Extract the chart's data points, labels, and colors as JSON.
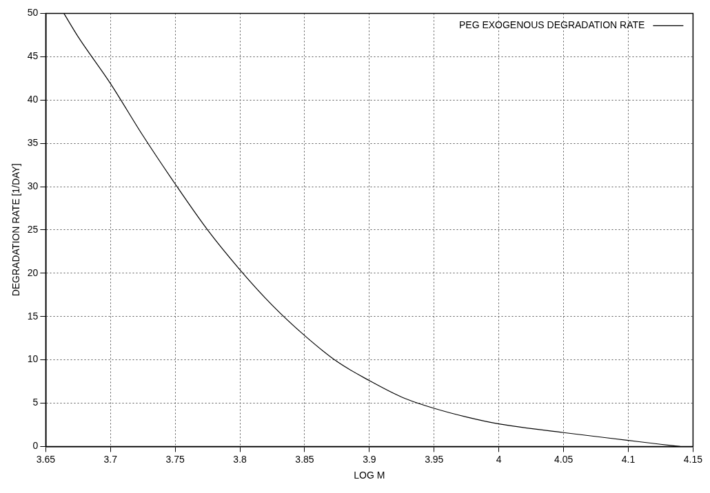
{
  "chart_data": {
    "type": "line",
    "xlabel": "LOG M",
    "ylabel": "DEGRADATION RATE [1/DAY]",
    "xlim": [
      3.65,
      4.15
    ],
    "xticks": [
      3.65,
      3.7,
      3.75,
      3.8,
      3.85,
      3.9,
      3.95,
      4,
      4.05,
      4.1,
      4.15
    ],
    "ylim": [
      0,
      50
    ],
    "yticks": [
      0,
      5,
      10,
      15,
      20,
      25,
      30,
      35,
      40,
      45,
      50
    ],
    "grid": true,
    "legend": "top right",
    "marker": "none",
    "line_style": "solid",
    "series": [
      {
        "name": "PEG EXOGENOUS DEGRADATION RATE",
        "color": "#000000",
        "x": [
          3.664,
          3.675,
          3.7,
          3.725,
          3.75,
          3.775,
          3.8,
          3.825,
          3.85,
          3.875,
          3.9,
          3.925,
          3.95,
          3.975,
          4,
          4.05,
          4.1,
          4.125,
          4.14
        ],
        "values": [
          50,
          47.3,
          41.9,
          35.9,
          30.3,
          25,
          20.4,
          16.3,
          12.8,
          9.8,
          7.6,
          5.7,
          4.4,
          3.4,
          2.6,
          1.6,
          0.7,
          0.25,
          0
        ]
      }
    ]
  }
}
